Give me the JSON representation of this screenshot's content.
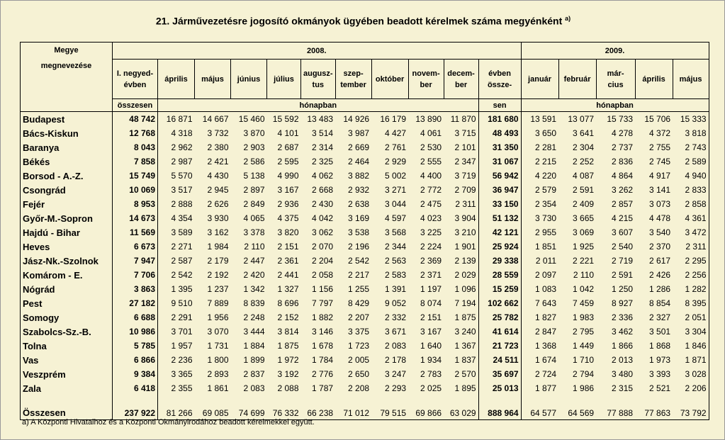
{
  "title": "21. Járművezetésre jogosító okmányok ügyében beadott kérelmek száma megyénként",
  "title_note": "a)",
  "table": {
    "header": {
      "county": "Megye\nmegnevezése",
      "year_2008": "2008.",
      "year_2009": "2009.",
      "columns": [
        "I. negyed-\névben",
        "április",
        "május",
        "június",
        "július",
        "augusz-\ntus",
        "szep-\ntember",
        "október",
        "novem-\nber",
        "decem-\nber",
        "évben\nössze-",
        "január",
        "február",
        "már-\ncius",
        "április",
        "május"
      ],
      "q1_sub": "összesen",
      "monthly_2008": "hónapban",
      "total_sub": "sen",
      "monthly_2009": "hónapban"
    },
    "rows": [
      [
        "Budapest",
        "48 742",
        "16 871",
        "14 667",
        "15 460",
        "15 592",
        "13 483",
        "14 926",
        "16 179",
        "13 890",
        "11 870",
        "181 680",
        "13 591",
        "13 077",
        "15 733",
        "15 706",
        "15 333"
      ],
      [
        "Bács-Kiskun",
        "12 768",
        "4 318",
        "3 732",
        "3 870",
        "4 101",
        "3 514",
        "3 987",
        "4 427",
        "4 061",
        "3 715",
        "48 493",
        "3 650",
        "3 641",
        "4 278",
        "4 372",
        "3 818"
      ],
      [
        "Baranya",
        "8 043",
        "2 962",
        "2 380",
        "2 903",
        "2 687",
        "2 314",
        "2 669",
        "2 761",
        "2 530",
        "2 101",
        "31 350",
        "2 281",
        "2 304",
        "2 737",
        "2 755",
        "2 743"
      ],
      [
        "Békés",
        "7 858",
        "2 987",
        "2 421",
        "2 586",
        "2 595",
        "2 325",
        "2 464",
        "2 929",
        "2 555",
        "2 347",
        "31 067",
        "2 215",
        "2 252",
        "2 836",
        "2 745",
        "2 589"
      ],
      [
        "Borsod - A.-Z.",
        "15 749",
        "5 570",
        "4 430",
        "5 138",
        "4 990",
        "4 062",
        "3 882",
        "5 002",
        "4 400",
        "3 719",
        "56 942",
        "4 220",
        "4 087",
        "4 864",
        "4 917",
        "4 940"
      ],
      [
        "Csongrád",
        "10 069",
        "3 517",
        "2 945",
        "2 897",
        "3 167",
        "2 668",
        "2 932",
        "3 271",
        "2 772",
        "2 709",
        "36 947",
        "2 579",
        "2 591",
        "3 262",
        "3 141",
        "2 833"
      ],
      [
        "Fejér",
        "8 953",
        "2 888",
        "2 626",
        "2 849",
        "2 936",
        "2 430",
        "2 638",
        "3 044",
        "2 475",
        "2 311",
        "33 150",
        "2 354",
        "2 409",
        "2 857",
        "3 073",
        "2 858"
      ],
      [
        "Győr-M.-Sopron",
        "14 673",
        "4 354",
        "3 930",
        "4 065",
        "4 375",
        "4 042",
        "3 169",
        "4 597",
        "4 023",
        "3 904",
        "51 132",
        "3 730",
        "3 665",
        "4 215",
        "4 478",
        "4 361"
      ],
      [
        "Hajdú - Bihar",
        "11 569",
        "3 589",
        "3 162",
        "3 378",
        "3 820",
        "3 062",
        "3 538",
        "3 568",
        "3 225",
        "3 210",
        "42 121",
        "2 955",
        "3 069",
        "3 607",
        "3 540",
        "3 472"
      ],
      [
        "Heves",
        "6 673",
        "2 271",
        "1 984",
        "2 110",
        "2 151",
        "2 070",
        "2 196",
        "2 344",
        "2 224",
        "1 901",
        "25 924",
        "1 851",
        "1 925",
        "2 540",
        "2 370",
        "2 311"
      ],
      [
        "Jász-Nk.-Szolnok",
        "7 947",
        "2 587",
        "2 179",
        "2 447",
        "2 361",
        "2 204",
        "2 542",
        "2 563",
        "2 369",
        "2 139",
        "29 338",
        "2 011",
        "2 221",
        "2 719",
        "2 617",
        "2 295"
      ],
      [
        "Komárom - E.",
        "7 706",
        "2 542",
        "2 192",
        "2 420",
        "2 441",
        "2 058",
        "2 217",
        "2 583",
        "2 371",
        "2 029",
        "28 559",
        "2 097",
        "2 110",
        "2 591",
        "2 426",
        "2 256"
      ],
      [
        "Nógrád",
        "3 863",
        "1 395",
        "1 237",
        "1 342",
        "1 327",
        "1 156",
        "1 255",
        "1 391",
        "1 197",
        "1 096",
        "15 259",
        "1 083",
        "1 042",
        "1 250",
        "1 286",
        "1 282"
      ],
      [
        "Pest",
        "27 182",
        "9 510",
        "7 889",
        "8 839",
        "8 696",
        "7 797",
        "8 429",
        "9 052",
        "8 074",
        "7 194",
        "102 662",
        "7 643",
        "7 459",
        "8 927",
        "8 854",
        "8 395"
      ],
      [
        "Somogy",
        "6 688",
        "2 291",
        "1 956",
        "2 248",
        "2 152",
        "1 882",
        "2 207",
        "2 332",
        "2 151",
        "1 875",
        "25 782",
        "1 827",
        "1 983",
        "2 336",
        "2 327",
        "2 051"
      ],
      [
        "Szabolcs-Sz.-B.",
        "10 986",
        "3 701",
        "3 070",
        "3 444",
        "3 814",
        "3 146",
        "3 375",
        "3 671",
        "3 167",
        "3 240",
        "41 614",
        "2 847",
        "2 795",
        "3 462",
        "3 501",
        "3 304"
      ],
      [
        "Tolna",
        "5 785",
        "1 957",
        "1 731",
        "1 884",
        "1 875",
        "1 678",
        "1 723",
        "2 083",
        "1 640",
        "1 367",
        "21 723",
        "1 368",
        "1 449",
        "1 866",
        "1 868",
        "1 846"
      ],
      [
        "Vas",
        "6 866",
        "2 236",
        "1 800",
        "1 899",
        "1 972",
        "1 784",
        "2 005",
        "2 178",
        "1 934",
        "1 837",
        "24 511",
        "1 674",
        "1 710",
        "2 013",
        "1 973",
        "1 871"
      ],
      [
        "Veszprém",
        "9 384",
        "3 365",
        "2 893",
        "2 837",
        "3 192",
        "2 776",
        "2 650",
        "3 247",
        "2 783",
        "2 570",
        "35 697",
        "2 724",
        "2 794",
        "3 480",
        "3 393",
        "3 028"
      ],
      [
        "Zala",
        "6 418",
        "2 355",
        "1 861",
        "2 083",
        "2 088",
        "1 787",
        "2 208",
        "2 293",
        "2 025",
        "1 895",
        "25 013",
        "1 877",
        "1 986",
        "2 315",
        "2 521",
        "2 206"
      ]
    ],
    "total_row": [
      "Összesen",
      "237 922",
      "81 266",
      "69 085",
      "74 699",
      "76 332",
      "66 238",
      "71 012",
      "79 515",
      "69 866",
      "63 029",
      "888 964",
      "64 577",
      "64 569",
      "77 888",
      "77 863",
      "73 792"
    ]
  },
  "footnote": "a) A Központi Hivatalhoz és a Központi Okmányirodához beadott kérelmekkel együtt."
}
